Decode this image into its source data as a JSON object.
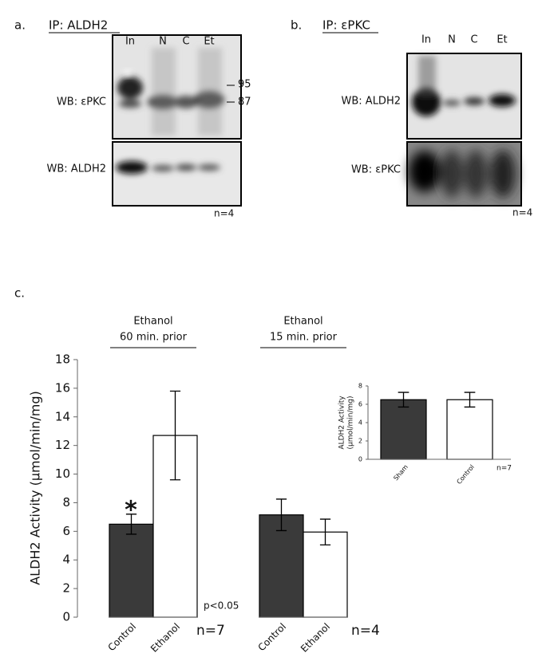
{
  "panels": {
    "a": {
      "label": "a.",
      "title": "IP: ALDH2",
      "lanes": [
        "In",
        "N",
        "C",
        "Et"
      ],
      "rows": [
        "WB: εPKC",
        "WB: ALDH2"
      ],
      "markers": [
        95,
        87
      ],
      "n": "n=4"
    },
    "b": {
      "label": "b.",
      "title": "IP: εPKC",
      "lanes": [
        "In",
        "N",
        "C",
        "Et"
      ],
      "rows": [
        "WB: ALDH2",
        "WB: εPKC"
      ],
      "n": "n=4"
    },
    "c": {
      "label": "c."
    }
  },
  "chart_data": [
    {
      "type": "bar",
      "ylabel": "ALDH2 Activity (µmol/min/mg)",
      "groups": [
        {
          "title": [
            "Ethanol",
            "60 min. prior"
          ],
          "n": "n=7"
        },
        {
          "title": [
            "Ethanol",
            "15 min. prior"
          ],
          "n": "n=4"
        }
      ],
      "categories": [
        "Control",
        "Ethanol",
        "Control",
        "Ethanol"
      ],
      "values": [
        6.5,
        12.7,
        7.15,
        5.95
      ],
      "errors": [
        0.7,
        3.1,
        1.1,
        0.9
      ],
      "colors": [
        "#3a3a3a",
        "#ffffff",
        "#3a3a3a",
        "#ffffff"
      ],
      "annotations": [
        "*",
        "p<0.05"
      ],
      "ylim": [
        0,
        18
      ],
      "yticks": [
        0,
        2,
        4,
        6,
        8,
        10,
        12,
        14,
        16,
        18
      ]
    },
    {
      "type": "bar",
      "ylabel": [
        "ALDH2 Activity",
        "(µmol/min/mg)"
      ],
      "categories": [
        "Sham",
        "Control"
      ],
      "values": [
        6.5,
        6.5
      ],
      "errors": [
        0.8,
        0.8
      ],
      "colors": [
        "#3a3a3a",
        "#ffffff"
      ],
      "n": "n=7",
      "ylim": [
        0,
        8
      ],
      "yticks": [
        0,
        2,
        4,
        6,
        8
      ]
    }
  ]
}
